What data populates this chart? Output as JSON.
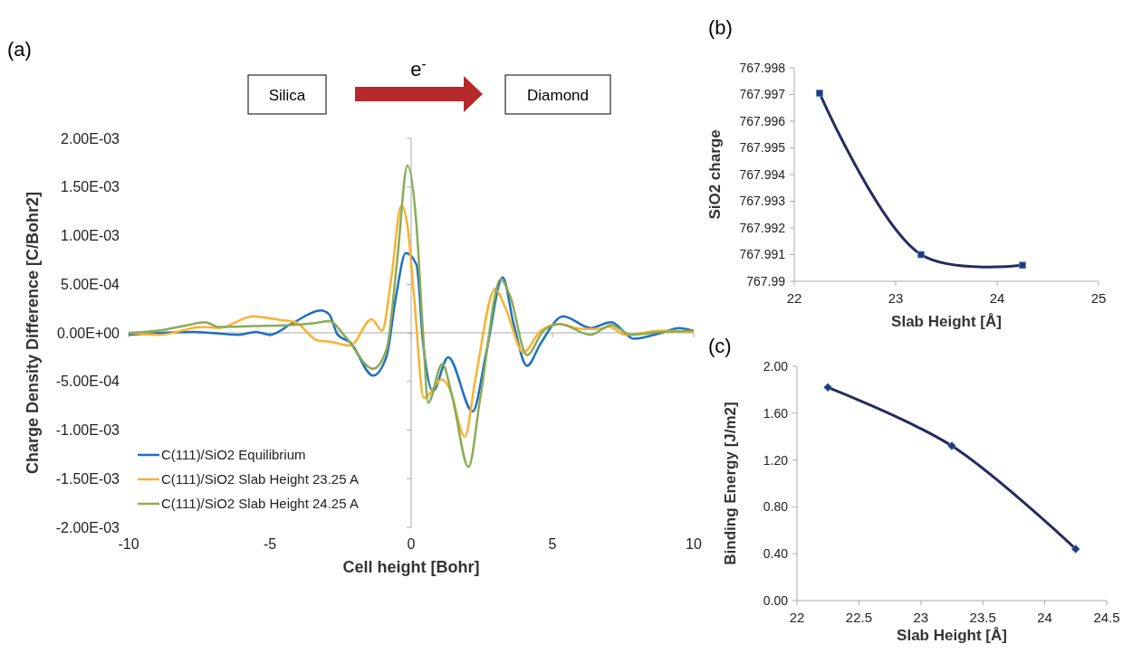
{
  "chart_data": [
    {
      "type": "line",
      "title": "(a)",
      "xlabel": "Cell height [Bohr]",
      "ylabel": "Charge Density Difference  [C/Bohr2]",
      "xlim": [
        -10,
        10
      ],
      "xticks": [
        -10,
        -5,
        0,
        5,
        10
      ],
      "ylim": [
        -0.002,
        0.002
      ],
      "yticks": [
        {
          "value": -0.002,
          "label": "-2.00E-03"
        },
        {
          "value": -0.0015,
          "label": "-1.50E-03"
        },
        {
          "value": -0.001,
          "label": "-1.00E-03"
        },
        {
          "value": -0.0005,
          "label": "-5.00E-04"
        },
        {
          "value": 0,
          "label": "0.00E+00"
        },
        {
          "value": 0.0005,
          "label": "5.00E-04"
        },
        {
          "value": 0.001,
          "label": "1.00E-03"
        },
        {
          "value": 0.0015,
          "label": "1.50E-03"
        },
        {
          "value": 0.002,
          "label": "2.00E-03"
        }
      ],
      "legend": "bottom left",
      "annotations": [
        "Silica",
        "Diamond",
        "e$^{-}$"
      ],
      "series": [
        {
          "name": "C(111)/SiO2 Equilibrium",
          "color": "#1f6fc0",
          "x": [
            -10,
            -7.7,
            -6.1,
            -5.5,
            -5.0,
            -4.2,
            -3.2,
            -2.9,
            -2.6,
            -2.15,
            -1.35,
            -0.87,
            -0.55,
            -0.19,
            0.19,
            0.42,
            0.77,
            1.31,
            2.18,
            2.66,
            3.24,
            3.62,
            4.1,
            4.58,
            5.38,
            6.35,
            7.08,
            7.88,
            8.85,
            9.49,
            10
          ],
          "values": [
            -2e-05,
            1e-05,
            -2e-05,
            1e-05,
            -2e-05,
            0.0001,
            0.00023,
            0.00019,
            -2e-05,
            -0.0001,
            -0.00044,
            -0.00024,
            0.00035,
            0.00082,
            0.0007,
            -0.0001,
            -0.0006,
            -0.00025,
            -0.00081,
            -0.0002,
            0.00057,
            0.0001,
            -0.00034,
            -0.00011,
            0.00017,
            5e-05,
            0.00011,
            -6e-05,
            0,
            5e-05,
            2e-05
          ]
        },
        {
          "name": "C(111)/SiO2 Slab Height 23.25 A",
          "color": "#f9b233",
          "x": [
            -10,
            -8.9,
            -7.4,
            -6.8,
            -5.6,
            -4.6,
            -4.1,
            -3.3,
            -2.9,
            -2.15,
            -1.4,
            -1.03,
            -0.7,
            -0.35,
            -0.13,
            0.1,
            0.45,
            1.09,
            1.37,
            1.9,
            2.27,
            2.97,
            3.33,
            3.97,
            4.58,
            5.22,
            6.06,
            6.6,
            7.02,
            7.56,
            8.85,
            10
          ],
          "values": [
            0,
            -2e-05,
            6e-05,
            5e-05,
            0.00017,
            0.00013,
            0.00011,
            -8e-05,
            -9e-05,
            -0.00013,
            0.00014,
            2e-05,
            0.00057,
            0.00131,
            0.0011,
            0.00038,
            -0.00067,
            -0.00048,
            -0.00058,
            -0.00107,
            -0.00048,
            0.00045,
            0.00026,
            -0.0002,
            2e-05,
            9e-05,
            4e-05,
            4e-05,
            6e-05,
            -2e-05,
            2e-05,
            1e-05
          ]
        },
        {
          "name": "C(111)/SiO2 Slab Height 24.25 A",
          "color": "#8aab55",
          "x": [
            -10,
            -9.0,
            -7.9,
            -7.3,
            -6.8,
            -5.6,
            -4.3,
            -3.4,
            -2.9,
            -2.3,
            -1.35,
            -0.87,
            -0.5,
            -0.13,
            0.19,
            0.42,
            0.6,
            1.1,
            1.47,
            2.03,
            2.44,
            3.17,
            3.5,
            4.1,
            4.68,
            5.26,
            6.35,
            7.08,
            7.78,
            8.85,
            10
          ],
          "values": [
            0,
            2e-05,
            8e-05,
            0.00011,
            6e-05,
            7e-05,
            8e-05,
            0.0001,
            0.00012,
            -5e-05,
            -0.00037,
            -0.00017,
            0.00073,
            0.00172,
            0.0011,
            0,
            -0.00072,
            -0.00032,
            -0.00068,
            -0.00138,
            -0.00068,
            0.00055,
            0.00038,
            -0.00023,
            2e-05,
            9e-05,
            -2e-05,
            8e-05,
            -2e-05,
            1e-05,
            2e-05
          ]
        }
      ]
    },
    {
      "type": "line",
      "title": "(b)",
      "xlabel": "Slab Height [Å]",
      "ylabel": "SiO2 charge",
      "xlim": [
        22,
        25
      ],
      "xticks": [
        22,
        23,
        24,
        25
      ],
      "ylim": [
        767.99,
        767.998
      ],
      "yticks": [
        767.99,
        767.991,
        767.992,
        767.993,
        767.994,
        767.995,
        767.996,
        767.997,
        767.998
      ],
      "marker": "square",
      "x": [
        22.25,
        23.25,
        24.25
      ],
      "series": [
        {
          "color": "#262a5e",
          "values": [
            767.99705,
            767.991,
            767.9906
          ]
        }
      ]
    },
    {
      "type": "line",
      "title": "(c)",
      "xlabel": "Slab Height [Å]",
      "ylabel": "Binding Energy [J/m2]",
      "xlim": [
        22,
        24.5
      ],
      "xticks": [
        22,
        22.5,
        23,
        23.5,
        24,
        24.5
      ],
      "ylim": [
        0,
        2
      ],
      "yticks": [
        {
          "value": 0,
          "label": "0.00"
        },
        {
          "value": 0.4,
          "label": "0.40"
        },
        {
          "value": 0.8,
          "label": "0.80"
        },
        {
          "value": 1.2,
          "label": "1.20"
        },
        {
          "value": 1.6,
          "label": "1.60"
        },
        {
          "value": 2,
          "label": "2.00"
        }
      ],
      "marker": "diamond",
      "x": [
        22.25,
        23.25,
        24.25
      ],
      "series": [
        {
          "color": "#262a5e",
          "values": [
            1.82,
            1.32,
            0.44
          ]
        }
      ]
    }
  ]
}
